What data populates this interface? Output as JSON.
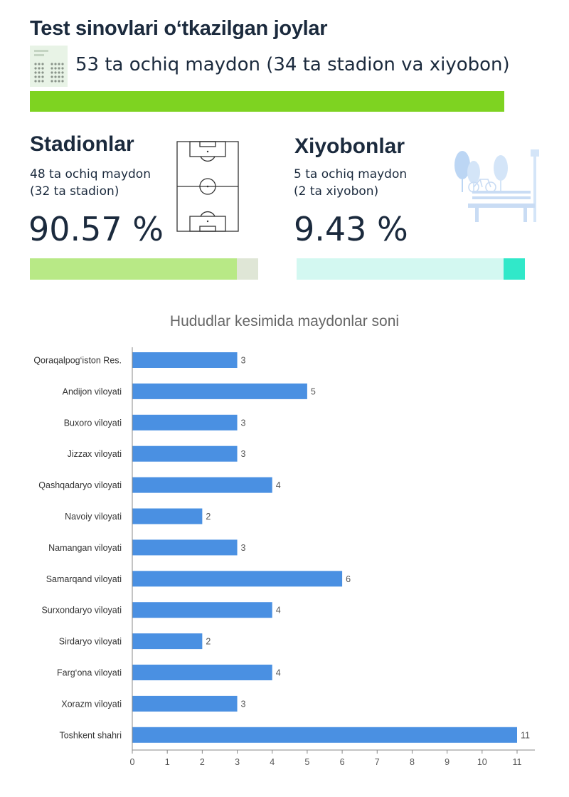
{
  "header": {
    "title": "Test sinovlari o‘tkazilgan joylar",
    "subtitle": "53 ta ochiq maydon (34 ta stadion va xiyobon)",
    "total_color": "#7ed321"
  },
  "stadionlar": {
    "title": "Stadionlar",
    "line1": "48 ta ochiq maydon",
    "line2": "(32 ta stadion)",
    "percent_label": "90.57 %",
    "percent": 90.57,
    "fill_color": "#b8e986",
    "track_color": "#dfe6d6",
    "icon": "football-field-icon"
  },
  "xiyobonlar": {
    "title": "Xiyobonlar",
    "line1": "5 ta ochiq maydon",
    "line2": "(2 ta xiyobon)",
    "percent_label": "9.43 %",
    "percent": 9.43,
    "fill_color": "#31e8c9",
    "track_color": "#d3f8f1",
    "icon": "park-bench-icon"
  },
  "chart_data": {
    "type": "bar",
    "orientation": "horizontal",
    "title": "Hududlar kesimida maydonlar soni",
    "categories": [
      "Qoraqalpog‘iston Res.",
      "Andijon viloyati",
      "Buxoro viloyati",
      "Jizzax viloyati",
      "Qashqadaryo viloyati",
      "Navoiy viloyati",
      "Namangan viloyati",
      "Samarqand viloyati",
      "Surxondaryo viloyati",
      "Sirdaryo viloyati",
      "Farg‘ona viloyati",
      "Xorazm viloyati",
      "Toshkent shahri"
    ],
    "values": [
      3,
      5,
      3,
      3,
      4,
      2,
      3,
      6,
      4,
      2,
      4,
      3,
      11
    ],
    "xlim": [
      0,
      11
    ],
    "xticks": [
      0,
      1,
      2,
      3,
      4,
      5,
      6,
      7,
      8,
      9,
      10,
      11
    ],
    "bar_color": "#4a90e2",
    "grid": false
  }
}
